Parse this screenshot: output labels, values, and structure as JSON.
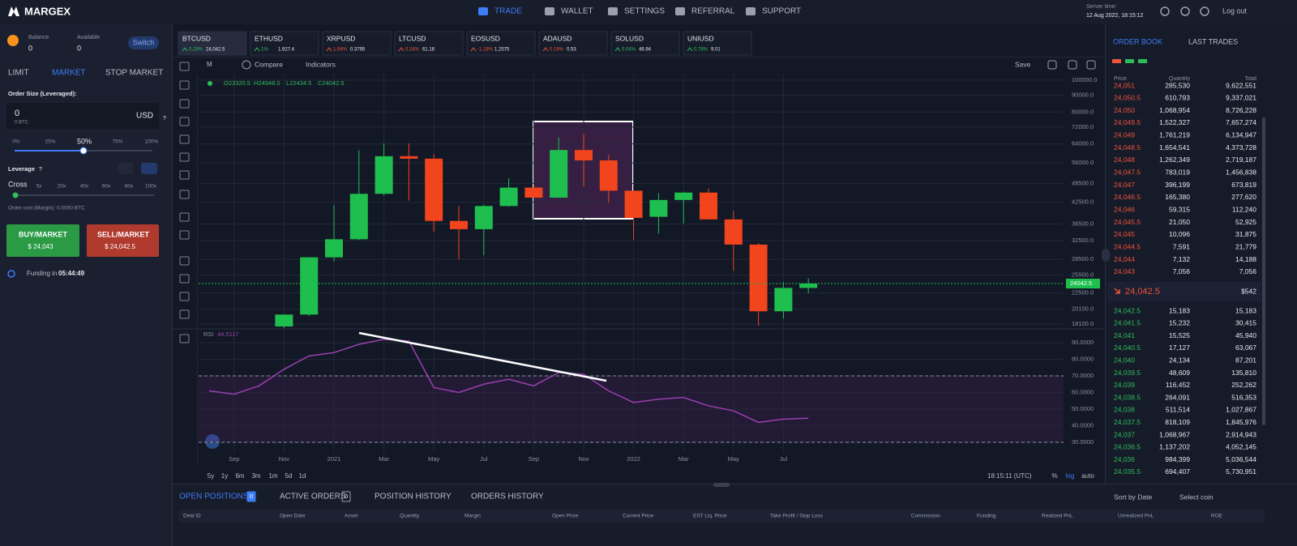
{
  "header": {
    "logo": "MARGEX",
    "nav": [
      "TRADE",
      "WALLET",
      "SETTINGS",
      "REFERRAL",
      "SUPPORT"
    ],
    "server_time_label": "Server time:",
    "server_time": "12 Aug 2022, 18:15:12",
    "logout": "Log out"
  },
  "left_panel": {
    "balance_label": "Balance",
    "balance": "0",
    "available_label": "Available",
    "available": "0",
    "switch": "Switch",
    "order_tabs": [
      "LIMIT",
      "MARKET",
      "STOP MARKET"
    ],
    "order_size_label": "Order Size (Leveraged):",
    "order_size": "0",
    "order_size_btc": "0 BTC",
    "currency": "USD",
    "help": "?",
    "slider_marks": [
      "0%",
      "25%",
      "50%",
      "75%",
      "100%"
    ],
    "leverage_label": "Leverage",
    "leverage_help": "?",
    "cross": "Cross",
    "leverage_marks": [
      "5x",
      "20x",
      "40x",
      "60x",
      "80x",
      "100x"
    ],
    "order_cost": "Order cost (Margin): 0.0000 BTC",
    "buy": "BUY/MARKET",
    "buy_price": "$ 24,043",
    "sell": "SELL/MARKET",
    "sell_price": "$ 24,042.5",
    "funding_label": "Funding in",
    "funding_time": "05:44:49"
  },
  "tickers": [
    {
      "symbol": "BTCUSD",
      "change": "0.29%",
      "price": "24,042.5",
      "color": "#2ebd5a"
    },
    {
      "symbol": "ETHUSD",
      "change": "1%",
      "price": "1,927.4",
      "color": "#2ebd5a"
    },
    {
      "symbol": "XRPUSD",
      "change": "1.94%",
      "price": "0.3795",
      "color": "#f0533a"
    },
    {
      "symbol": "LTCUSD",
      "change": "0.24%",
      "price": "61.18",
      "color": "#f0533a"
    },
    {
      "symbol": "EOSUSD",
      "change": "-1.18%",
      "price": "1.2575",
      "color": "#f0533a"
    },
    {
      "symbol": "ADAUSD",
      "change": "0.19%",
      "price": "0.53",
      "color": "#f0533a"
    },
    {
      "symbol": "SOLUSD",
      "change": "0.04%",
      "price": "46.94",
      "color": "#2ebd5a"
    },
    {
      "symbol": "UNIUSD",
      "change": "0.78%",
      "price": "9.01",
      "color": "#2ebd5a"
    }
  ],
  "toolbar": {
    "interval": "M",
    "compare": "Compare",
    "indicators": "Indicators",
    "save": "Save"
  },
  "ohlc_legend": [
    "O23320.5",
    "H24948.0",
    "L22434.5",
    "C24042.5"
  ],
  "rsi_legend": {
    "name": "RSI",
    "value": "44.5117"
  },
  "chart_footer": {
    "timeframes": [
      "5y",
      "1y",
      "6m",
      "3m",
      "1m",
      "5d",
      "1d"
    ],
    "clock": "18:15:11 (UTC)",
    "scale_options": [
      "%",
      "log",
      "auto"
    ]
  },
  "chart_data": [
    {
      "type": "candlestick",
      "log_scale": true,
      "grid": true,
      "up_color": "#1fbf4f",
      "down_color": "#f2441d",
      "categories": [
        null,
        "Sep",
        null,
        "Nov",
        null,
        "2021",
        null,
        "Mar",
        null,
        "May",
        null,
        "Jul",
        null,
        "Sep",
        null,
        "Nov",
        null,
        "2022",
        null,
        "Mar",
        null,
        "May",
        null,
        "Jul",
        null
      ],
      "open": [
        null,
        null,
        null,
        17800,
        19350,
        28900,
        32800,
        45100,
        58700,
        57700,
        37300,
        35200,
        41400,
        47100,
        43900,
        61300,
        57000,
        46100,
        38400,
        43200,
        45500,
        37700,
        31600,
        19800,
        23320.5
      ],
      "high": [
        null,
        null,
        null,
        19400,
        28900,
        41700,
        61200,
        64200,
        64200,
        59500,
        41400,
        41800,
        50300,
        48000,
        66900,
        68500,
        59300,
        46100,
        45300,
        45800,
        46800,
        40000,
        31900,
        24300,
        24948.0
      ],
      "low": [
        null,
        null,
        null,
        17600,
        19150,
        28100,
        32600,
        44600,
        43000,
        34600,
        28500,
        29300,
        41200,
        43800,
        43800,
        47500,
        42300,
        32700,
        34100,
        36600,
        37700,
        26300,
        17900,
        18800,
        22434.5
      ],
      "close": [
        null,
        null,
        null,
        19350,
        28900,
        32800,
        45100,
        58700,
        57700,
        37300,
        35200,
        41400,
        47100,
        43900,
        61300,
        57000,
        46100,
        38100,
        43200,
        45500,
        37700,
        31600,
        19800,
        23320.5,
        24042.5
      ],
      "ylim": [
        17600,
        100000
      ],
      "yticks": [
        {
          "value": 100000,
          "label": "100000.0"
        },
        {
          "value": 90000,
          "label": "90000.0"
        },
        {
          "value": 80000,
          "label": "80000.0"
        },
        {
          "value": 72000,
          "label": "72000.0"
        },
        {
          "value": 64000,
          "label": "64000.0"
        },
        {
          "value": 56000,
          "label": "56000.0"
        },
        {
          "value": 48500,
          "label": "48500.0"
        },
        {
          "value": 42500,
          "label": "42500.0"
        },
        {
          "value": 36500,
          "label": "36500.0"
        },
        {
          "value": 32500,
          "label": "32500.0"
        },
        {
          "value": 28500,
          "label": "28500.0"
        },
        {
          "value": 25500,
          "label": "25500.0"
        },
        {
          "value": 22500,
          "label": "22500.0"
        },
        {
          "value": 20100,
          "label": "20100.0"
        },
        {
          "value": 18100,
          "label": "18100.0"
        }
      ]
    },
    {
      "type": "line",
      "name": "RSI",
      "color": "#9b3fb0",
      "grid": true,
      "values": [
        61,
        59,
        64,
        74,
        82,
        84,
        89,
        92,
        91,
        63,
        60,
        65,
        68,
        64,
        72,
        71,
        61,
        54,
        56,
        57,
        52,
        49,
        42,
        44,
        44.5117
      ],
      "levels": [
        70,
        30
      ],
      "ylim": [
        23.2,
        97.3
      ],
      "yticks": [
        {
          "value": 90,
          "label": "90.0000"
        },
        {
          "value": 80,
          "label": "80.0000"
        },
        {
          "value": 70,
          "label": "70.0000"
        },
        {
          "value": 60,
          "label": "60.0000"
        },
        {
          "value": 50,
          "label": "50.0000"
        },
        {
          "value": 40,
          "label": "40.0000"
        },
        {
          "value": 30,
          "label": "30.0000"
        }
      ]
    }
  ],
  "order_book": {
    "tabs": [
      "ORDER BOOK",
      "LAST TRADES"
    ],
    "columns": [
      "Price",
      "Quantity",
      "Total"
    ],
    "asks": [
      [
        "24,051",
        "285,530",
        "9,622,551"
      ],
      [
        "24,050.5",
        "610,793",
        "9,337,021"
      ],
      [
        "24,050",
        "1,068,954",
        "8,726,228"
      ],
      [
        "24,049.5",
        "1,522,327",
        "7,657,274"
      ],
      [
        "24,049",
        "1,761,219",
        "6,134,947"
      ],
      [
        "24,048.5",
        "1,654,541",
        "4,373,728"
      ],
      [
        "24,048",
        "1,262,349",
        "2,719,187"
      ],
      [
        "24,047.5",
        "783,019",
        "1,456,838"
      ],
      [
        "24,047",
        "396,199",
        "673,819"
      ],
      [
        "24,046.5",
        "165,380",
        "277,620"
      ],
      [
        "24,046",
        "59,315",
        "112,240"
      ],
      [
        "24,045.5",
        "21,050",
        "52,925"
      ],
      [
        "24,045",
        "10,096",
        "31,875"
      ],
      [
        "24,044.5",
        "7,591",
        "21,779"
      ],
      [
        "24,044",
        "7,132",
        "14,188"
      ],
      [
        "24,043",
        "7,056",
        "7,056"
      ]
    ],
    "last_price": "24,042.5",
    "last_value": "$542",
    "bids": [
      [
        "24,042.5",
        "15,183",
        "15,183"
      ],
      [
        "24,041.5",
        "15,232",
        "30,415"
      ],
      [
        "24,041",
        "15,525",
        "45,940"
      ],
      [
        "24,040.5",
        "17,127",
        "63,067"
      ],
      [
        "24,040",
        "24,134",
        "87,201"
      ],
      [
        "24,039.5",
        "48,609",
        "135,810"
      ],
      [
        "24,039",
        "116,452",
        "252,262"
      ],
      [
        "24,038.5",
        "264,091",
        "516,353"
      ],
      [
        "24,038",
        "511,514",
        "1,027,867"
      ],
      [
        "24,037.5",
        "818,109",
        "1,845,976"
      ],
      [
        "24,037",
        "1,068,967",
        "2,914,943"
      ],
      [
        "24,036.5",
        "1,137,202",
        "4,052,145"
      ],
      [
        "24,036",
        "984,399",
        "5,036,544"
      ],
      [
        "24,035.5",
        "694,407",
        "5,730,951"
      ]
    ]
  },
  "positions": {
    "tabs": [
      {
        "label": "OPEN POSITIONS",
        "count": "0"
      },
      {
        "label": "ACTIVE ORDERS",
        "count": "0"
      },
      {
        "label": "POSITION HISTORY"
      },
      {
        "label": "ORDERS HISTORY"
      }
    ],
    "sort": "Sort by Date",
    "select": "Select coin",
    "columns": [
      "Deal ID",
      "Open Date",
      "Asset",
      "Quantity",
      "Margin",
      "Open Price",
      "Current Price",
      "EST Liq. Price",
      "Take Profit / Stop Loss",
      "Commission",
      "Funding",
      "Realized PnL",
      "Unrealized PnL",
      "ROE"
    ]
  }
}
